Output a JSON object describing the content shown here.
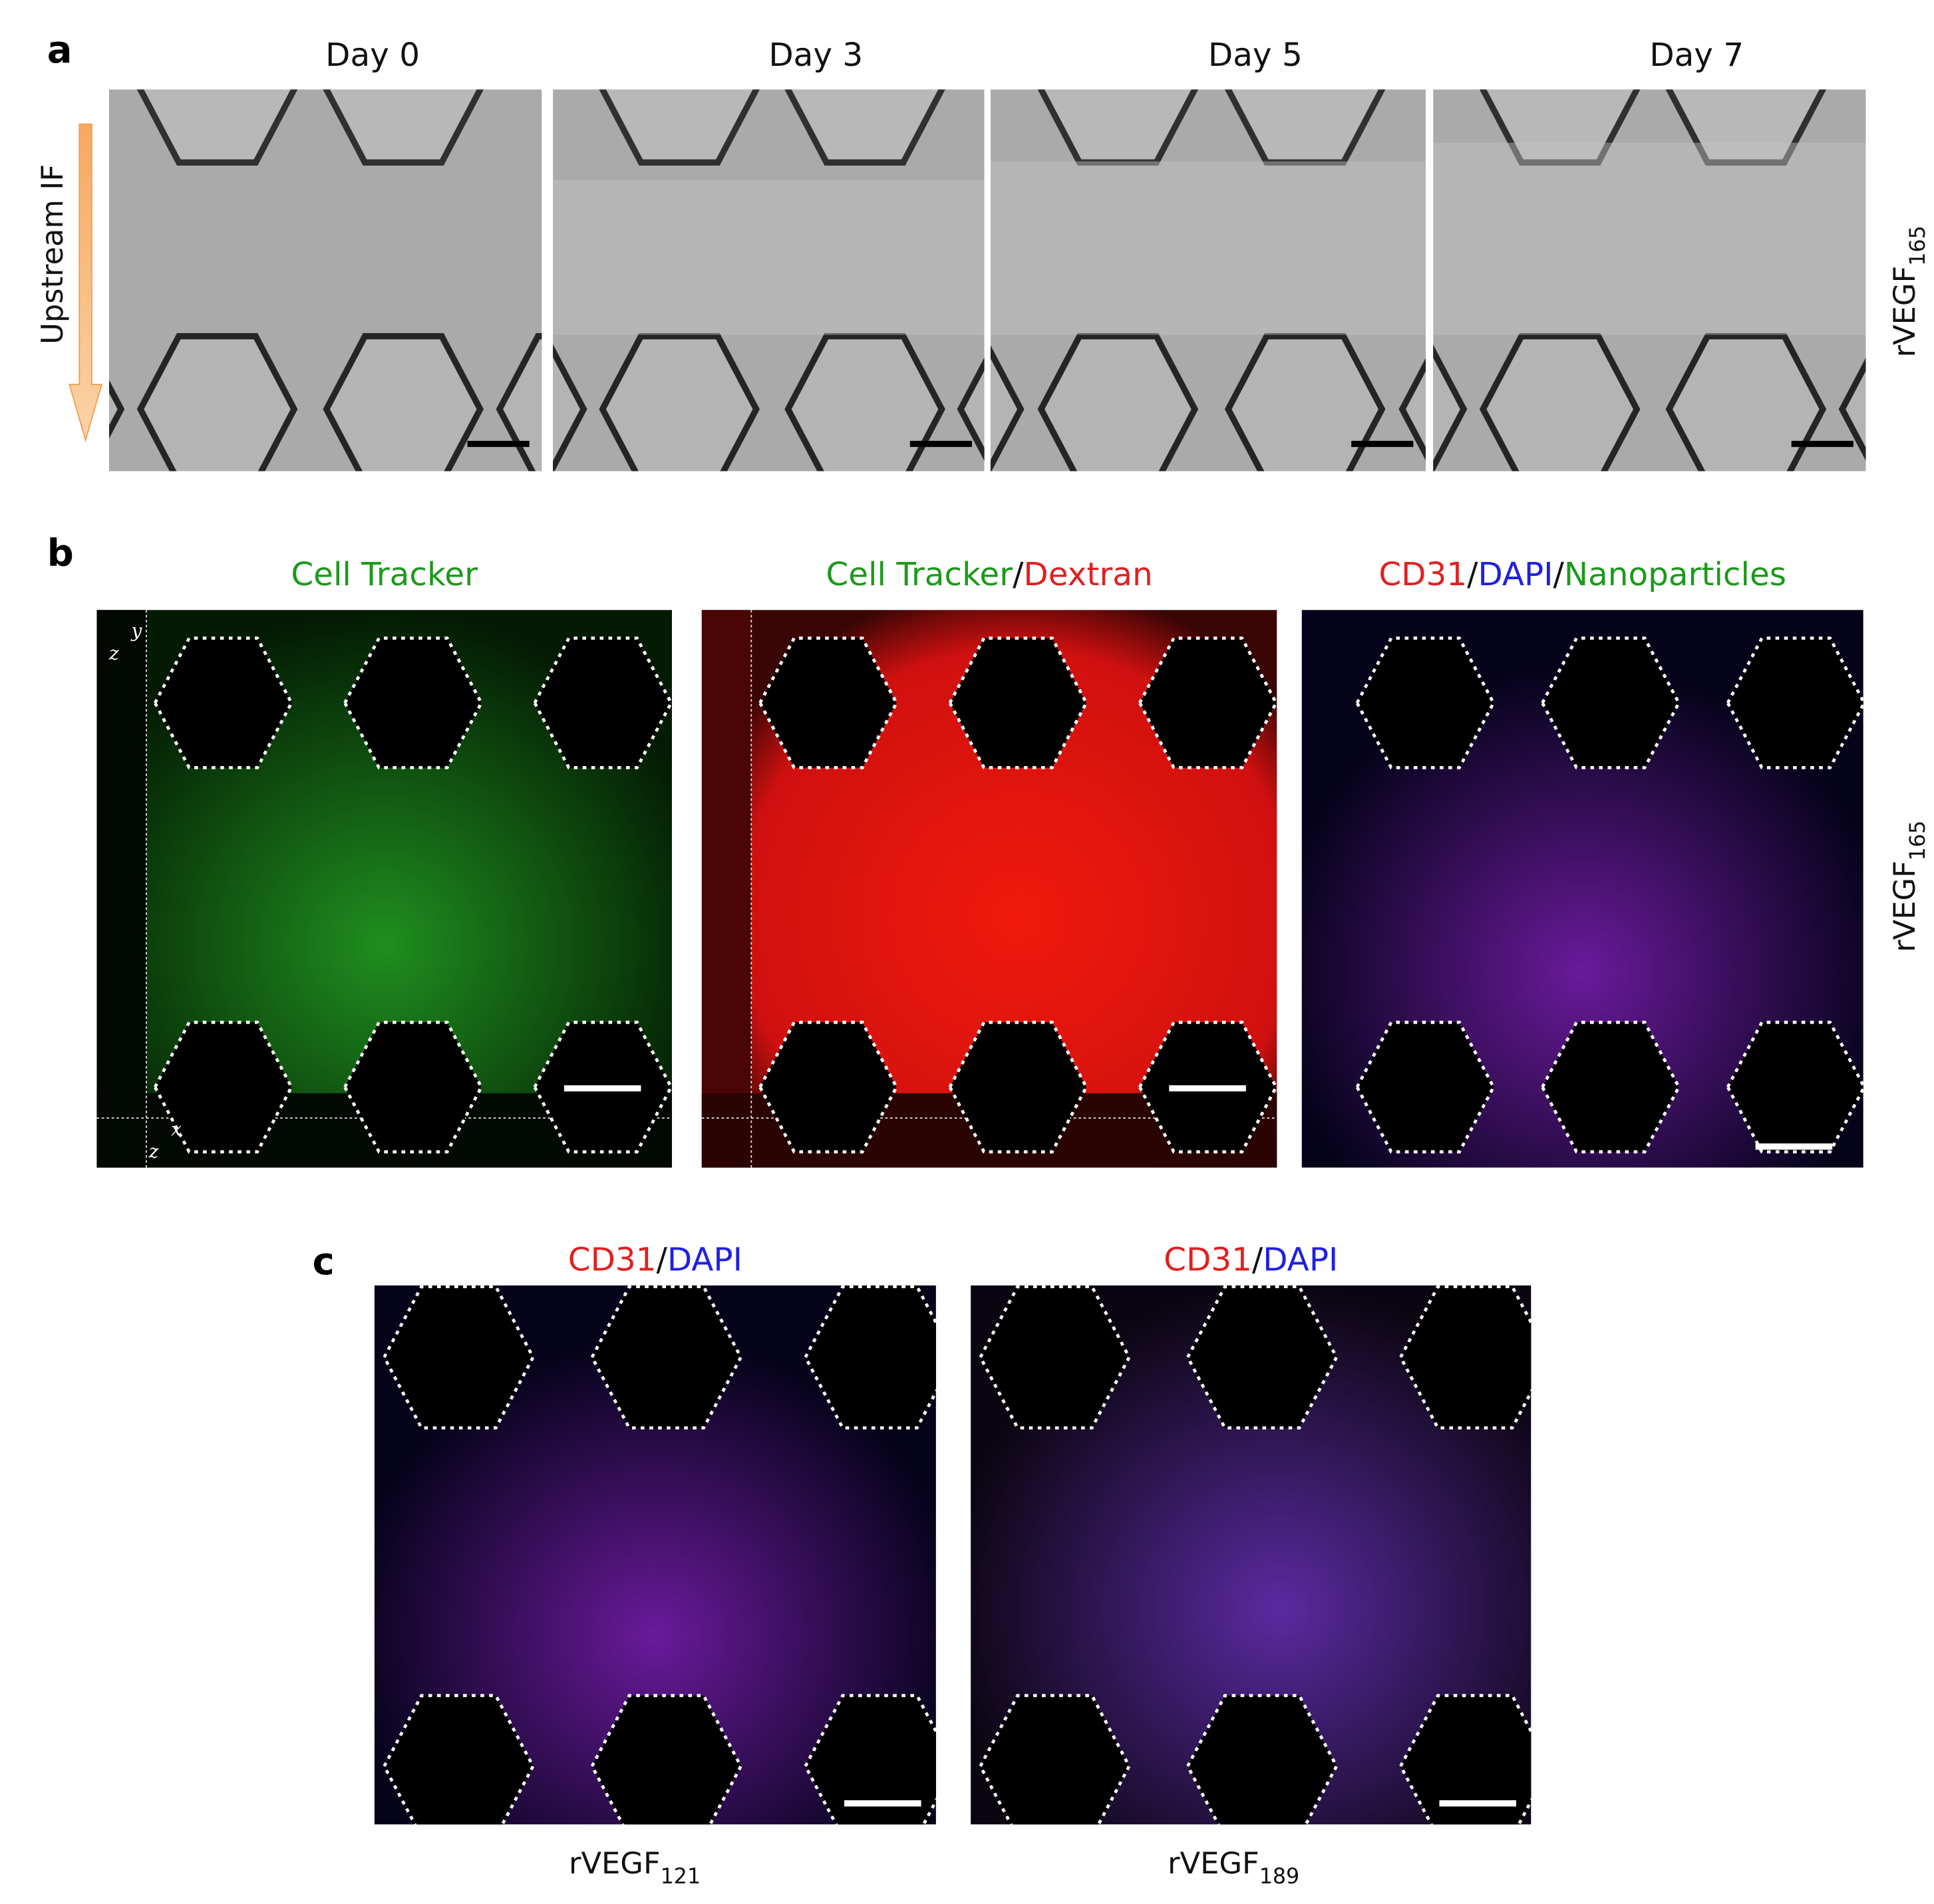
{
  "panels": [
    {
      "label": "a",
      "columns": [
        "Day 0",
        "Day 3",
        "Day 5",
        "Day 7"
      ],
      "side_label": "Upstream IF",
      "row_label": {
        "text": "rVEGF",
        "subscript": "165"
      }
    },
    {
      "label": "b",
      "titles": [
        [
          {
            "text": "Cell Tracker",
            "color": "#1a9a1a"
          }
        ],
        [
          {
            "text": "Cell Tracker",
            "color": "#1a9a1a"
          },
          {
            "text": "/",
            "color": "#111111"
          },
          {
            "text": "Dextran",
            "color": "#e02020"
          }
        ],
        [
          {
            "text": "CD31",
            "color": "#e02020"
          },
          {
            "text": "/",
            "color": "#111111"
          },
          {
            "text": "DAPI",
            "color": "#2020e0"
          },
          {
            "text": "/",
            "color": "#111111"
          },
          {
            "text": "Nanoparticles",
            "color": "#1a9a1a"
          }
        ]
      ],
      "axis_letters": [
        "y",
        "z",
        "x",
        "z"
      ],
      "row_label": {
        "text": "rVEGF",
        "subscript": "165"
      }
    },
    {
      "label": "c",
      "titles": [
        [
          {
            "text": "CD31",
            "color": "#e02020"
          },
          {
            "text": "/",
            "color": "#111111"
          },
          {
            "text": "DAPI",
            "color": "#2020e0"
          }
        ],
        [
          {
            "text": "CD31",
            "color": "#e02020"
          },
          {
            "text": "/",
            "color": "#111111"
          },
          {
            "text": "DAPI",
            "color": "#2020e0"
          }
        ]
      ],
      "captions": [
        {
          "text": "rVEGF",
          "subscript": "121"
        },
        {
          "text": "rVEGF",
          "subscript": "189"
        }
      ]
    }
  ]
}
